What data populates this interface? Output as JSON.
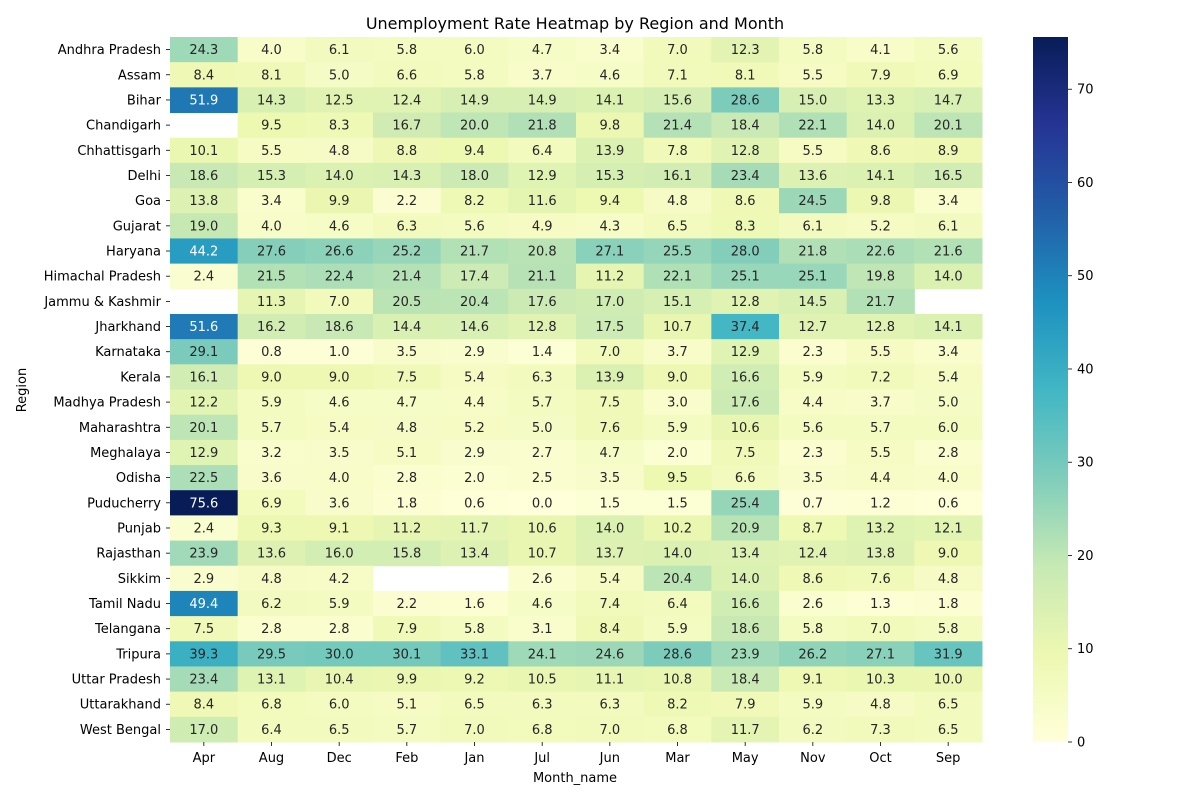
{
  "chart_data": {
    "type": "heatmap",
    "title": "Unemployment Rate Heatmap by Region and Month",
    "xlabel": "Month_name",
    "ylabel": "Region",
    "columns": [
      "Apr",
      "Aug",
      "Dec",
      "Feb",
      "Jan",
      "Jul",
      "Jun",
      "Mar",
      "May",
      "Nov",
      "Oct",
      "Sep"
    ],
    "rows": [
      "Andhra Pradesh",
      "Assam",
      "Bihar",
      "Chandigarh",
      "Chhattisgarh",
      "Delhi",
      "Goa",
      "Gujarat",
      "Haryana",
      "Himachal Pradesh",
      "Jammu & Kashmir",
      "Jharkhand",
      "Karnataka",
      "Kerala",
      "Madhya Pradesh",
      "Maharashtra",
      "Meghalaya",
      "Odisha",
      "Puducherry",
      "Punjab",
      "Rajasthan",
      "Sikkim",
      "Tamil Nadu",
      "Telangana",
      "Tripura",
      "Uttar Pradesh",
      "Uttarakhand",
      "West Bengal"
    ],
    "values": [
      [
        24.3,
        4.0,
        6.1,
        5.8,
        6.0,
        4.7,
        3.4,
        7.0,
        12.3,
        5.8,
        4.1,
        5.6
      ],
      [
        8.4,
        8.1,
        5.0,
        6.6,
        5.8,
        3.7,
        4.6,
        7.1,
        8.1,
        5.5,
        7.9,
        6.9
      ],
      [
        51.9,
        14.3,
        12.5,
        12.4,
        14.9,
        14.9,
        14.1,
        15.6,
        28.6,
        15.0,
        13.3,
        14.7
      ],
      [
        null,
        9.5,
        8.3,
        16.7,
        20.0,
        21.8,
        9.8,
        21.4,
        18.4,
        22.1,
        14.0,
        20.1
      ],
      [
        10.1,
        5.5,
        4.8,
        8.8,
        9.4,
        6.4,
        13.9,
        7.8,
        12.8,
        5.5,
        8.6,
        8.9
      ],
      [
        18.6,
        15.3,
        14.0,
        14.3,
        18.0,
        12.9,
        15.3,
        16.1,
        23.4,
        13.6,
        14.1,
        16.5
      ],
      [
        13.8,
        3.4,
        9.9,
        2.2,
        8.2,
        11.6,
        9.4,
        4.8,
        8.6,
        24.5,
        9.8,
        3.4
      ],
      [
        19.0,
        4.0,
        4.6,
        6.3,
        5.6,
        4.9,
        4.3,
        6.5,
        8.3,
        6.1,
        5.2,
        6.1
      ],
      [
        44.2,
        27.6,
        26.6,
        25.2,
        21.7,
        20.8,
        27.1,
        25.5,
        28.0,
        21.8,
        22.6,
        21.6
      ],
      [
        2.4,
        21.5,
        22.4,
        21.4,
        17.4,
        21.1,
        11.2,
        22.1,
        25.1,
        25.1,
        19.8,
        14.0
      ],
      [
        null,
        11.3,
        7.0,
        20.5,
        20.4,
        17.6,
        17.0,
        15.1,
        12.8,
        14.5,
        21.7,
        null
      ],
      [
        51.6,
        16.2,
        18.6,
        14.4,
        14.6,
        12.8,
        17.5,
        10.7,
        37.4,
        12.7,
        12.8,
        14.1
      ],
      [
        29.1,
        0.8,
        1.0,
        3.5,
        2.9,
        1.4,
        7.0,
        3.7,
        12.9,
        2.3,
        5.5,
        3.4
      ],
      [
        16.1,
        9.0,
        9.0,
        7.5,
        5.4,
        6.3,
        13.9,
        9.0,
        16.6,
        5.9,
        7.2,
        5.4
      ],
      [
        12.2,
        5.9,
        4.6,
        4.7,
        4.4,
        5.7,
        7.5,
        3.0,
        17.6,
        4.4,
        3.7,
        5.0
      ],
      [
        20.1,
        5.7,
        5.4,
        4.8,
        5.2,
        5.0,
        7.6,
        5.9,
        10.6,
        5.6,
        5.7,
        6.0
      ],
      [
        12.9,
        3.2,
        3.5,
        5.1,
        2.9,
        2.7,
        4.7,
        2.0,
        7.5,
        2.3,
        5.5,
        2.8
      ],
      [
        22.5,
        3.6,
        4.0,
        2.8,
        2.0,
        2.5,
        3.5,
        9.5,
        6.6,
        3.5,
        4.4,
        4.0
      ],
      [
        75.6,
        6.9,
        3.6,
        1.8,
        0.6,
        0.0,
        1.5,
        1.5,
        25.4,
        0.7,
        1.2,
        0.6
      ],
      [
        2.4,
        9.3,
        9.1,
        11.2,
        11.7,
        10.6,
        14.0,
        10.2,
        20.9,
        8.7,
        13.2,
        12.1
      ],
      [
        23.9,
        13.6,
        16.0,
        15.8,
        13.4,
        10.7,
        13.7,
        14.0,
        13.4,
        12.4,
        13.8,
        9.0
      ],
      [
        2.9,
        4.8,
        4.2,
        null,
        null,
        2.6,
        5.4,
        20.4,
        14.0,
        8.6,
        7.6,
        4.8
      ],
      [
        49.4,
        6.2,
        5.9,
        2.2,
        1.6,
        4.6,
        7.4,
        6.4,
        16.6,
        2.6,
        1.3,
        1.8
      ],
      [
        7.5,
        2.8,
        2.8,
        7.9,
        5.8,
        3.1,
        8.4,
        5.9,
        18.6,
        5.8,
        7.0,
        5.8
      ],
      [
        39.3,
        29.5,
        30.0,
        30.1,
        33.1,
        24.1,
        24.6,
        28.6,
        23.9,
        26.2,
        27.1,
        31.9
      ],
      [
        23.4,
        13.1,
        10.4,
        9.9,
        9.2,
        10.5,
        11.1,
        10.8,
        18.4,
        9.1,
        10.3,
        10.0
      ],
      [
        8.4,
        6.8,
        6.0,
        5.1,
        6.5,
        6.3,
        6.3,
        8.2,
        7.9,
        5.9,
        4.8,
        6.5
      ],
      [
        17.0,
        6.4,
        6.5,
        5.7,
        7.0,
        6.8,
        7.0,
        6.8,
        11.7,
        6.2,
        7.3,
        6.5
      ]
    ],
    "colorbar": {
      "colormap": "YlGnBu",
      "min": 0,
      "max": 75.6,
      "ticks": [
        0,
        10,
        20,
        30,
        40,
        50,
        60,
        70
      ]
    },
    "legend": "colorbar-right",
    "grid": false
  }
}
